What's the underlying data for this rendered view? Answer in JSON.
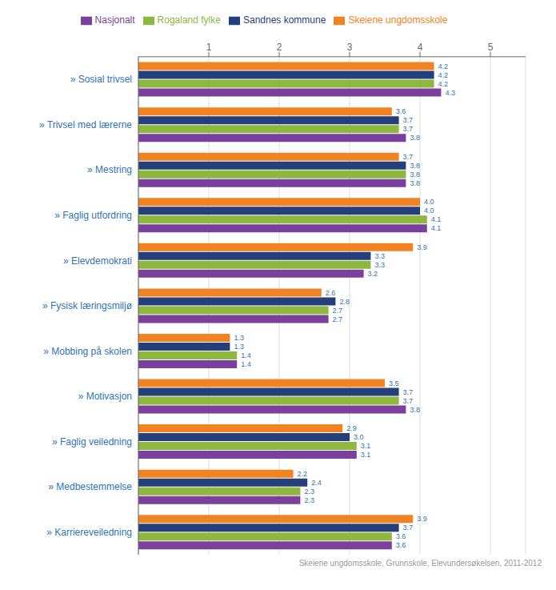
{
  "chart_data": {
    "type": "bar",
    "orientation": "horizontal",
    "subtitle": "Skeiene ungdomsskole, Grunnskole, Elevundersøkelsen, 2011-2012",
    "categories": [
      "» Sosial trivsel",
      "» Trivsel med lærerne",
      "» Mestring",
      "» Faglig utfordring",
      "» Elevdemokrati",
      "» Fysisk læringsmiljø",
      "» Mobbing på skolen",
      "» Motivasjon",
      "» Faglig veiledning",
      "» Medbestemmelse",
      "» Karriereveiledning"
    ],
    "series": [
      {
        "name": "Skeiene ungdomsskole",
        "color": "#F28322",
        "values": [
          4.2,
          3.6,
          3.7,
          4.0,
          3.9,
          2.6,
          1.3,
          3.5,
          2.9,
          2.2,
          3.9
        ],
        "value_labels": [
          "4.2",
          "3.6",
          "3.7",
          "4.0",
          "3.9",
          "2.6",
          "1.3",
          "3.5",
          "2.9",
          "2.2",
          "3.9"
        ]
      },
      {
        "name": "Sandnes kommune",
        "color": "#243F7A",
        "values": [
          4.2,
          3.7,
          3.8,
          4.0,
          3.3,
          2.8,
          1.3,
          3.7,
          3.0,
          2.4,
          3.7
        ],
        "value_labels": [
          "4.2",
          "3.7",
          "3.8",
          "4.0",
          "3.3",
          "2.8",
          "1.3",
          "3.7",
          "3.0",
          "2.4",
          "3.7"
        ]
      },
      {
        "name": "Rogaland fylke",
        "color": "#8DB73E",
        "values": [
          4.2,
          3.7,
          3.8,
          4.1,
          3.3,
          2.7,
          1.4,
          3.7,
          3.1,
          2.3,
          3.6
        ],
        "value_labels": [
          "4.2",
          "3.7",
          "3.8",
          "4.1",
          "3.3",
          "2.7",
          "1.4",
          "3.7",
          "3.1",
          "2.3",
          "3.6"
        ]
      },
      {
        "name": "Nasjonalt",
        "color": "#7B3F9E",
        "values": [
          4.3,
          3.8,
          3.8,
          4.1,
          3.2,
          2.7,
          1.4,
          3.8,
          3.1,
          2.3,
          3.6
        ],
        "value_labels": [
          "4.3",
          "3.8",
          "3.8",
          "4.1",
          "3.2",
          "2.7",
          "1.4",
          "3.8",
          "3.1",
          "2.3",
          "3.6"
        ]
      }
    ],
    "xlim": [
      0,
      5.5
    ],
    "xticks": [
      1,
      2,
      3,
      4,
      5
    ],
    "grid": true,
    "legend": "top",
    "data_labels": true
  }
}
